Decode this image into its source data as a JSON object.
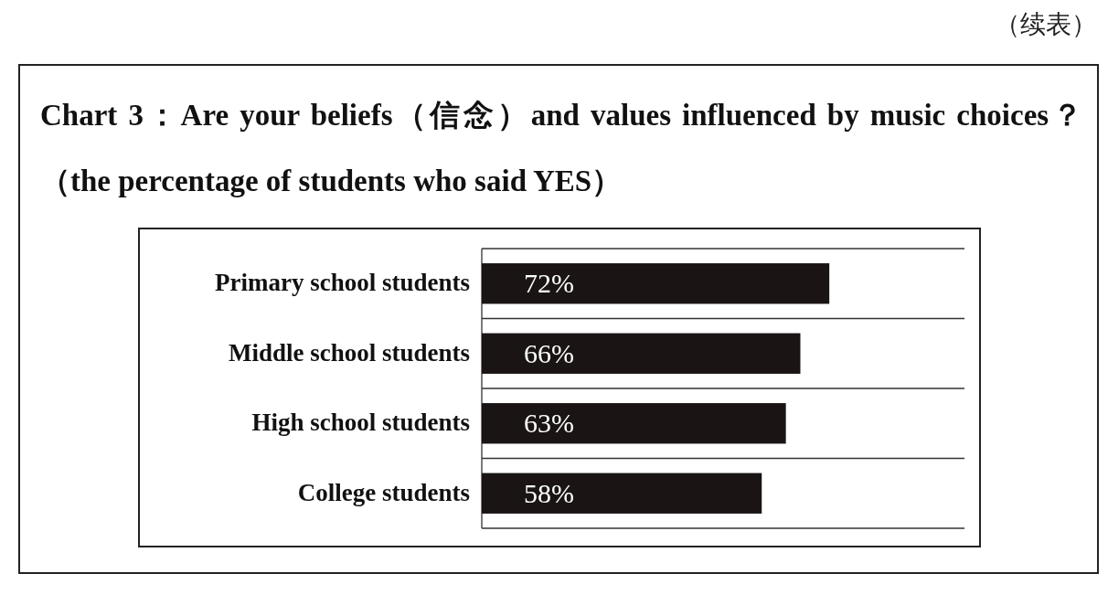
{
  "chart_data": {
    "type": "bar",
    "orientation": "horizontal",
    "title": "Chart 3：Are your beliefs（信念）and values influenced by music choices？（the percentage of students who said YES）",
    "annotations": [
      "（续表）"
    ],
    "categories": [
      "Primary school students",
      "Middle school students",
      "High school students",
      "College students"
    ],
    "values": [
      72,
      66,
      63,
      58
    ],
    "value_labels": [
      "72%",
      "66%",
      "63%",
      "58%"
    ],
    "color": "#1a1414",
    "xlim": [
      0,
      100
    ],
    "grid": "y",
    "tick_labels": "y"
  }
}
